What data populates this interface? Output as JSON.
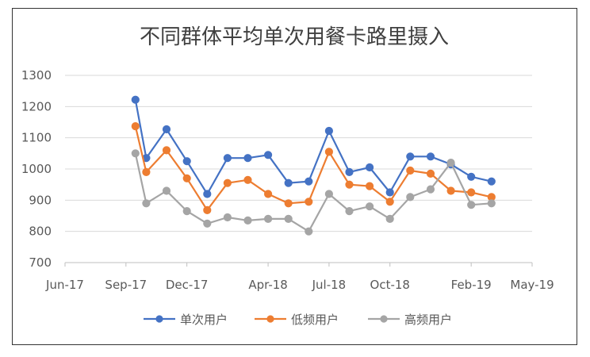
{
  "chart_data": {
    "type": "line",
    "title": "不同群体平均单次用餐卡路里摄入",
    "x_tick_labels": [
      "Jun-17",
      "Sep-17",
      "Dec-17",
      "Apr-18",
      "Jul-18",
      "Oct-18",
      "Feb-19",
      "May-19"
    ],
    "x_range": [
      "Jun-17",
      "May-19"
    ],
    "x": [
      "2017-09-15",
      "2017-10-01",
      "2017-11-01",
      "2017-12-01",
      "2018-01-01",
      "2018-02-01",
      "2018-03-01",
      "2018-04-01",
      "2018-05-01",
      "2018-06-01",
      "2018-07-01",
      "2018-08-01",
      "2018-09-01",
      "2018-10-01",
      "2018-11-01",
      "2018-12-01",
      "2019-01-01",
      "2019-02-01",
      "2019-03-01"
    ],
    "ylim": [
      700,
      1300
    ],
    "y_ticks": [
      700,
      800,
      900,
      1000,
      1100,
      1200,
      1300
    ],
    "grid": "horizontal",
    "legend_position": "bottom",
    "series": [
      {
        "name": "单次用户",
        "color": "#4472C4",
        "values": [
          1222,
          1035,
          1127,
          1025,
          920,
          1035,
          1035,
          1045,
          955,
          960,
          1122,
          990,
          1005,
          925,
          1040,
          1040,
          1015,
          975,
          960
        ]
      },
      {
        "name": "低频用户",
        "color": "#ED7D31",
        "values": [
          1137,
          990,
          1060,
          970,
          868,
          955,
          965,
          920,
          890,
          895,
          1055,
          950,
          945,
          895,
          995,
          985,
          930,
          925,
          910
        ]
      },
      {
        "name": "高频用户",
        "color": "#A5A5A5",
        "values": [
          1050,
          890,
          930,
          865,
          825,
          845,
          835,
          840,
          840,
          800,
          920,
          865,
          880,
          840,
          910,
          935,
          1020,
          885,
          890
        ]
      }
    ]
  }
}
